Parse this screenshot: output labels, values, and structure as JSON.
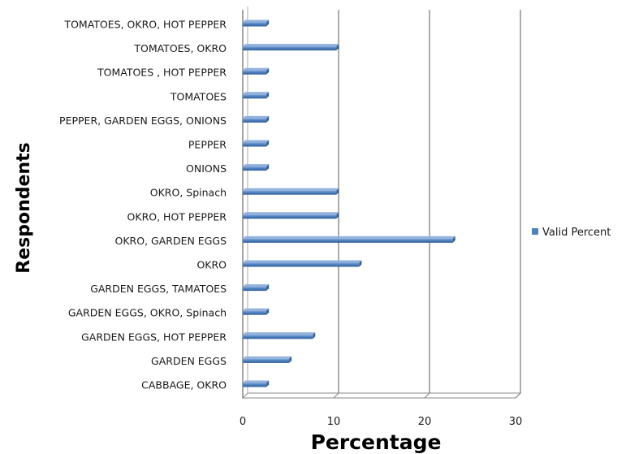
{
  "chart_data": {
    "type": "bar",
    "orientation": "horizontal",
    "categories": [
      "CABBAGE, OKRO",
      "GARDEN EGGS",
      "GARDEN EGGS, HOT PEPPER",
      "GARDEN EGGS, OKRO, Spinach",
      "GARDEN EGGS, TAMATOES",
      "OKRO",
      "OKRO, GARDEN EGGS",
      "OKRO, HOT PEPPER",
      "OKRO, Spinach",
      "ONIONS",
      "PEPPER",
      "PEPPER, GARDEN EGGS, ONIONS",
      "TOMATOES",
      "TOMATOES , HOT PEPPER",
      "TOMATOES, OKRO",
      "TOMATOES, OKRO, HOT PEPPER"
    ],
    "series": [
      {
        "name": "Valid Percent",
        "color": "#4f81bd",
        "values": [
          2.6,
          5.1,
          7.7,
          2.6,
          2.6,
          12.8,
          23.1,
          10.3,
          10.3,
          2.6,
          2.6,
          2.6,
          2.6,
          2.6,
          10.3,
          2.6
        ]
      }
    ],
    "xlabel": "Percentage",
    "ylabel": "Respondents",
    "xlim": [
      0,
      30
    ],
    "xticks": [
      0,
      10,
      20,
      30
    ],
    "grid": "vertical",
    "legend_position": "right"
  }
}
